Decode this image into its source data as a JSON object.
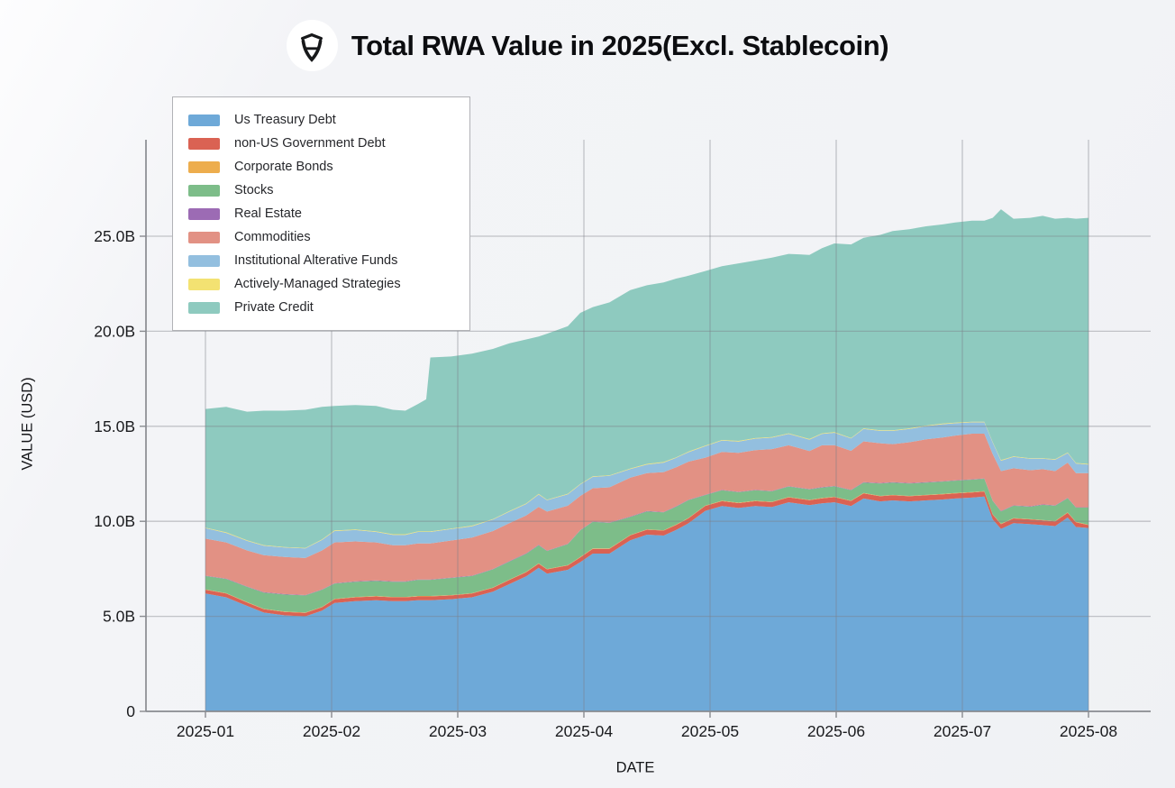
{
  "header": {
    "title": "Total RWA Value in 2025(Excl. Stablecoin)",
    "logo": "shield-icon"
  },
  "axes": {
    "x_label": "DATE",
    "y_label": "VALUE (USD)",
    "y_ticks": [
      {
        "label": "0",
        "value": 0
      },
      {
        "label": "5.0B",
        "value": 5
      },
      {
        "label": "10.0B",
        "value": 10
      },
      {
        "label": "15.0B",
        "value": 15
      },
      {
        "label": "20.0B",
        "value": 20
      },
      {
        "label": "25.0B",
        "value": 25
      }
    ],
    "x_ticks": [
      {
        "label": "2025-01",
        "month": 0
      },
      {
        "label": "2025-02",
        "month": 1
      },
      {
        "label": "2025-03",
        "month": 2
      },
      {
        "label": "2025-04",
        "month": 3
      },
      {
        "label": "2025-05",
        "month": 4
      },
      {
        "label": "2025-06",
        "month": 5
      },
      {
        "label": "2025-07",
        "month": 6
      },
      {
        "label": "2025-08",
        "month": 7
      }
    ]
  },
  "chart_data": {
    "type": "area",
    "stacked": true,
    "title": "Total RWA Value in 2025(Excl. Stablecoin)",
    "xlabel": "DATE",
    "ylabel": "VALUE (USD)",
    "x_unit": "days since 2025-01-01",
    "x_range_days": [
      0,
      212
    ],
    "ylim": [
      0,
      30
    ],
    "grid": true,
    "legend_position": "upper-left",
    "values_unit": "billions USD",
    "x": [
      0,
      5,
      10,
      14,
      19,
      24,
      28,
      31,
      36,
      41,
      45,
      48,
      51,
      53,
      54,
      59,
      64,
      69,
      73,
      77,
      80,
      82,
      87,
      90,
      93,
      97,
      102,
      106,
      110,
      113,
      116,
      120,
      124,
      128,
      132,
      136,
      140,
      145,
      148,
      151,
      155,
      158,
      162,
      165,
      169,
      173,
      177,
      180,
      184,
      187,
      189,
      191,
      194,
      198,
      201,
      204,
      207,
      209,
      212
    ],
    "series": [
      {
        "name": "Us Treasury Debt",
        "color": "#6ea9d8",
        "values": [
          6.2,
          6.0,
          5.55,
          5.2,
          5.05,
          5.0,
          5.3,
          5.7,
          5.8,
          5.85,
          5.8,
          5.8,
          5.85,
          5.85,
          5.85,
          5.9,
          6.0,
          6.3,
          6.7,
          7.1,
          7.55,
          7.25,
          7.45,
          7.85,
          8.3,
          8.3,
          9.0,
          9.3,
          9.25,
          9.55,
          9.9,
          10.55,
          10.8,
          10.7,
          10.8,
          10.75,
          11.0,
          10.85,
          10.95,
          11.0,
          10.8,
          11.2,
          11.05,
          11.1,
          11.05,
          11.1,
          11.15,
          11.2,
          11.25,
          11.3,
          10.1,
          9.6,
          9.9,
          9.85,
          9.8,
          9.75,
          10.2,
          9.7,
          9.65
        ]
      },
      {
        "name": "non-US Government Debt",
        "color": "#da6253",
        "values": [
          0.2,
          0.2,
          0.18,
          0.18,
          0.18,
          0.18,
          0.18,
          0.2,
          0.2,
          0.2,
          0.2,
          0.2,
          0.2,
          0.2,
          0.2,
          0.2,
          0.2,
          0.2,
          0.22,
          0.22,
          0.22,
          0.22,
          0.23,
          0.25,
          0.25,
          0.25,
          0.26,
          0.26,
          0.26,
          0.26,
          0.26,
          0.26,
          0.26,
          0.26,
          0.26,
          0.26,
          0.26,
          0.26,
          0.26,
          0.27,
          0.27,
          0.27,
          0.27,
          0.27,
          0.27,
          0.27,
          0.27,
          0.27,
          0.27,
          0.27,
          0.25,
          0.25,
          0.25,
          0.25,
          0.25,
          0.25,
          0.25,
          0.25,
          0.15
        ]
      },
      {
        "name": "Corporate Bonds",
        "color": "#edad4d",
        "constant": 0.02
      },
      {
        "name": "Stocks",
        "color": "#7dbd89",
        "values": [
          0.7,
          0.75,
          0.8,
          0.85,
          0.9,
          0.9,
          0.9,
          0.8,
          0.8,
          0.8,
          0.8,
          0.8,
          0.85,
          0.85,
          0.85,
          0.9,
          0.9,
          0.95,
          0.95,
          0.95,
          0.95,
          0.95,
          1.1,
          1.4,
          1.4,
          1.35,
          0.95,
          0.94,
          0.94,
          0.94,
          0.94,
          0.55,
          0.55,
          0.55,
          0.55,
          0.55,
          0.55,
          0.55,
          0.55,
          0.55,
          0.55,
          0.55,
          0.65,
          0.65,
          0.65,
          0.65,
          0.65,
          0.65,
          0.65,
          0.65,
          0.7,
          0.65,
          0.65,
          0.65,
          0.8,
          0.8,
          0.75,
          0.75,
          0.9
        ]
      },
      {
        "name": "Real Estate",
        "color": "#9c6bb4",
        "constant": 0.02
      },
      {
        "name": "Commodities",
        "color": "#e29184",
        "values": [
          1.95,
          1.9,
          1.9,
          1.95,
          1.95,
          1.95,
          2.05,
          2.15,
          2.1,
          2.0,
          1.9,
          1.9,
          1.9,
          1.9,
          1.9,
          1.95,
          2.0,
          2.0,
          2.0,
          2.0,
          2.0,
          2.05,
          2.0,
          1.8,
          1.75,
          1.85,
          2.05,
          2.0,
          2.1,
          2.05,
          2.0,
          1.95,
          2.0,
          2.05,
          2.1,
          2.2,
          2.15,
          2.0,
          2.2,
          2.15,
          2.05,
          2.15,
          2.1,
          2.0,
          2.15,
          2.25,
          2.3,
          2.35,
          2.4,
          2.35,
          2.45,
          2.1,
          1.95,
          1.9,
          1.85,
          1.8,
          1.85,
          1.8,
          1.8
        ]
      },
      {
        "name": "Institutional Alterative Funds",
        "color": "#93bfdf",
        "values": [
          0.55,
          0.5,
          0.5,
          0.5,
          0.5,
          0.5,
          0.55,
          0.6,
          0.6,
          0.55,
          0.55,
          0.55,
          0.6,
          0.6,
          0.6,
          0.6,
          0.6,
          0.6,
          0.6,
          0.6,
          0.65,
          0.6,
          0.6,
          0.6,
          0.6,
          0.6,
          0.45,
          0.45,
          0.5,
          0.5,
          0.5,
          0.6,
          0.6,
          0.6,
          0.6,
          0.6,
          0.6,
          0.6,
          0.6,
          0.65,
          0.65,
          0.65,
          0.65,
          0.7,
          0.7,
          0.7,
          0.7,
          0.65,
          0.6,
          0.6,
          0.6,
          0.55,
          0.6,
          0.6,
          0.55,
          0.6,
          0.5,
          0.5,
          0.45
        ]
      },
      {
        "name": "Actively-Managed Strategies",
        "color": "#f3e272",
        "constant": 0.03
      },
      {
        "name": "Private Credit",
        "color": "#8ecabf",
        "values": [
          6.24,
          6.6,
          6.77,
          7.07,
          7.17,
          7.27,
          6.97,
          6.55,
          6.55,
          6.6,
          6.55,
          6.5,
          6.7,
          6.95,
          9.15,
          9.05,
          9.05,
          8.95,
          8.83,
          8.63,
          8.28,
          8.73,
          8.82,
          9.0,
          8.9,
          9.1,
          9.39,
          9.4,
          9.45,
          9.4,
          9.25,
          9.19,
          9.14,
          9.34,
          9.34,
          9.44,
          9.44,
          9.69,
          9.74,
          9.93,
          10.18,
          10.03,
          10.28,
          10.48,
          10.48,
          10.48,
          10.48,
          10.53,
          10.58,
          10.58,
          11.8,
          13.2,
          12.5,
          12.65,
          12.75,
          12.65,
          12.35,
          12.85,
          12.95
        ]
      }
    ]
  },
  "colors": {
    "background": "#f2f3f6",
    "grid": "#7d7f85",
    "axis_line": "#898b90",
    "legend_border": "#b1b2b6",
    "title_text": "#0c0d10"
  }
}
